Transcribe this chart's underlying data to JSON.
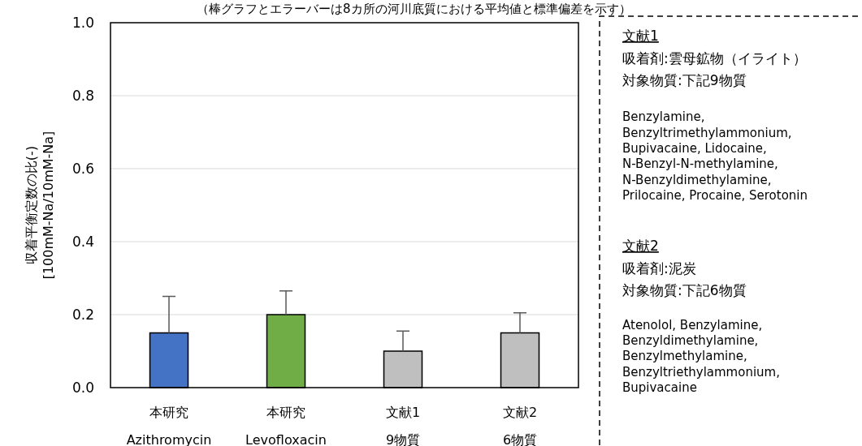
{
  "chart_data": {
    "type": "bar",
    "title": "（棒グラフとエラーバーは8カ所の河川底質における平均値と標準偏差を示す）",
    "ylabel": "収着平衡定数の比(-)\n[100mM-Na/10mM-Na]",
    "categories": [
      "本研究\nAzithromycin",
      "本研究\nLevofloxacin",
      "文献1\n9物質",
      "文献2\n6物質"
    ],
    "values": [
      0.15,
      0.2,
      0.1,
      0.15
    ],
    "colors": [
      "#4472c4",
      "#70ad47",
      "#bfbfbf",
      "#bfbfbf"
    ],
    "errors": [
      [
        0.15,
        0.25
      ],
      [
        0.2,
        0.265
      ],
      [
        0.1,
        0.155
      ],
      [
        0.15,
        0.205
      ]
    ],
    "ylim": [
      0,
      1
    ],
    "yticks": [
      {
        "value": 0,
        "label": "0.0"
      },
      {
        "value": 0.2,
        "label": "0.2"
      },
      {
        "value": 0.4,
        "label": "0.4"
      },
      {
        "value": 0.6,
        "label": "0.6"
      },
      {
        "value": 0.8,
        "label": "0.8"
      },
      {
        "value": 1,
        "label": "1.0"
      }
    ],
    "grid": "y",
    "annotations": [
      "文献1",
      "吸着剤:雲母鉱物（イライト）",
      "対象物質:下記9物質",
      "Benzylamine,",
      "Benzyltrimethylammonium,",
      "Bupivacaine, Lidocaine,",
      "N-Benzyl-N-methylamine,",
      "N-Benzyldimethylamine,",
      "Prilocaine, Procaine, Serotonin",
      "文献2",
      "吸着剤:泥炭",
      "対象物質:下記6物質",
      "Atenolol, Benzylamine,",
      "Benzyldimethylamine,",
      "Benzylmethylamine,",
      "Benzyltriethylammonium,",
      "Bupivacaine"
    ]
  }
}
